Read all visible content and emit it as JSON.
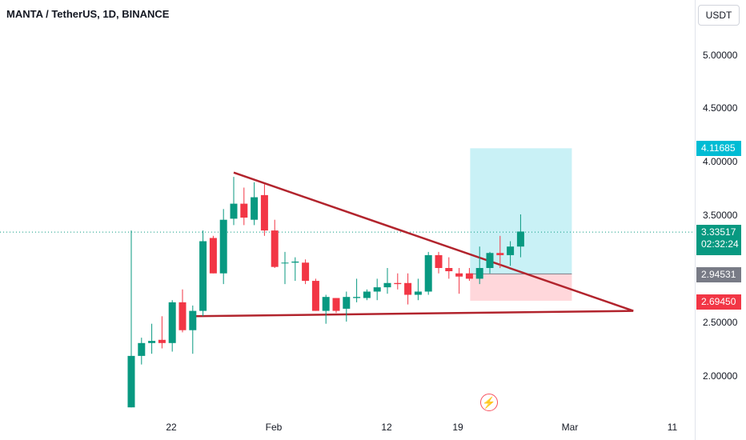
{
  "header": {
    "title": "MANTA / TetherUS, 1D, BINANCE"
  },
  "price_axis": {
    "unit": "USDT",
    "ticks": [
      "5.00000",
      "4.50000",
      "4.00000",
      "3.50000",
      "2.50000",
      "2.00000"
    ],
    "tick_values": [
      5.0,
      4.5,
      4.0,
      3.5,
      2.5,
      2.0
    ]
  },
  "time_axis": {
    "labels": [
      "22",
      "Feb",
      "12",
      "19",
      "Mar",
      "11"
    ]
  },
  "price_labels": {
    "take_profit": "4.11685",
    "current_price": "3.33517",
    "countdown": "02:32:24",
    "entry": "2.94531",
    "stop_loss": "2.69450"
  },
  "colors": {
    "up": "#089981",
    "down": "#f23645",
    "trendline": "#b2242d",
    "profit_zone": "#b2ebf2",
    "loss_zone": "#ffcdd2",
    "current_line": "#089981"
  },
  "icons": {
    "alert": "lightning-bolt-icon"
  },
  "chart_data": {
    "type": "candlestick",
    "candles": [
      {
        "o": 1.7,
        "h": 3.35,
        "l": 1.7,
        "c": 2.18
      },
      {
        "o": 2.18,
        "h": 2.35,
        "l": 2.1,
        "c": 2.3
      },
      {
        "o": 2.3,
        "h": 2.48,
        "l": 2.2,
        "c": 2.32
      },
      {
        "o": 2.33,
        "h": 2.55,
        "l": 2.25,
        "c": 2.3
      },
      {
        "o": 2.3,
        "h": 2.7,
        "l": 2.22,
        "c": 2.68
      },
      {
        "o": 2.68,
        "h": 2.8,
        "l": 2.4,
        "c": 2.42
      },
      {
        "o": 2.42,
        "h": 2.65,
        "l": 2.2,
        "c": 2.6
      },
      {
        "o": 2.6,
        "h": 3.35,
        "l": 2.55,
        "c": 3.25
      },
      {
        "o": 3.28,
        "h": 3.3,
        "l": 2.95,
        "c": 2.95
      },
      {
        "o": 2.95,
        "h": 3.55,
        "l": 2.85,
        "c": 3.45
      },
      {
        "o": 3.46,
        "h": 3.85,
        "l": 3.4,
        "c": 3.6
      },
      {
        "o": 3.6,
        "h": 3.75,
        "l": 3.4,
        "c": 3.47
      },
      {
        "o": 3.45,
        "h": 3.8,
        "l": 3.4,
        "c": 3.66
      },
      {
        "o": 3.68,
        "h": 3.78,
        "l": 3.3,
        "c": 3.35
      },
      {
        "o": 3.35,
        "h": 3.45,
        "l": 3.0,
        "c": 3.01
      },
      {
        "o": 3.05,
        "h": 3.15,
        "l": 2.85,
        "c": 3.05
      },
      {
        "o": 3.05,
        "h": 3.1,
        "l": 2.88,
        "c": 3.06
      },
      {
        "o": 3.05,
        "h": 3.08,
        "l": 2.85,
        "c": 2.88
      },
      {
        "o": 2.88,
        "h": 2.9,
        "l": 2.6,
        "c": 2.6
      },
      {
        "o": 2.6,
        "h": 2.75,
        "l": 2.48,
        "c": 2.73
      },
      {
        "o": 2.72,
        "h": 2.72,
        "l": 2.58,
        "c": 2.6
      },
      {
        "o": 2.62,
        "h": 2.78,
        "l": 2.5,
        "c": 2.73
      },
      {
        "o": 2.72,
        "h": 2.9,
        "l": 2.68,
        "c": 2.73
      },
      {
        "o": 2.72,
        "h": 2.8,
        "l": 2.7,
        "c": 2.78
      },
      {
        "o": 2.78,
        "h": 2.9,
        "l": 2.7,
        "c": 2.82
      },
      {
        "o": 2.82,
        "h": 3.0,
        "l": 2.76,
        "c": 2.86
      },
      {
        "o": 2.86,
        "h": 2.95,
        "l": 2.8,
        "c": 2.85
      },
      {
        "o": 2.86,
        "h": 2.95,
        "l": 2.66,
        "c": 2.75
      },
      {
        "o": 2.75,
        "h": 2.9,
        "l": 2.7,
        "c": 2.78
      },
      {
        "o": 2.78,
        "h": 3.15,
        "l": 2.75,
        "c": 3.12
      },
      {
        "o": 3.12,
        "h": 3.15,
        "l": 2.95,
        "c": 3.0
      },
      {
        "o": 3.0,
        "h": 3.1,
        "l": 2.9,
        "c": 2.97
      },
      {
        "o": 2.95,
        "h": 3.0,
        "l": 2.76,
        "c": 2.92
      },
      {
        "o": 2.95,
        "h": 3.0,
        "l": 2.88,
        "c": 2.9
      },
      {
        "o": 2.9,
        "h": 3.2,
        "l": 2.85,
        "c": 3.0
      },
      {
        "o": 3.0,
        "h": 3.15,
        "l": 2.95,
        "c": 3.14
      },
      {
        "o": 3.14,
        "h": 3.3,
        "l": 3.0,
        "c": 3.12
      },
      {
        "o": 3.12,
        "h": 3.25,
        "l": 3.02,
        "c": 3.2
      },
      {
        "o": 3.2,
        "h": 3.5,
        "l": 3.1,
        "c": 3.34
      }
    ],
    "current_price": 3.33517,
    "position": {
      "entry": 2.94531,
      "take_profit": 4.11685,
      "stop_loss": 2.6945
    },
    "trendlines": [
      {
        "from_candle": 10,
        "from_price": 3.89,
        "to_candle": 49,
        "to_price": 2.6
      },
      {
        "from_candle": 6,
        "from_price": 2.55,
        "to_candle": 49,
        "to_price": 2.6
      }
    ]
  }
}
